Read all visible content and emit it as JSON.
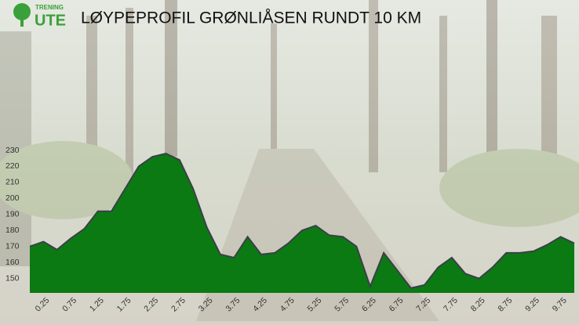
{
  "logo": {
    "top": "TRENING",
    "bottom": "UTE"
  },
  "chart_data": {
    "type": "area",
    "title": "LØYPEPROFIL GRØNLIÅSEN RUNDT 10 KM",
    "x": [
      0,
      0.25,
      0.5,
      0.75,
      1,
      1.25,
      1.5,
      1.75,
      2,
      2.25,
      2.5,
      2.75,
      3,
      3.25,
      3.5,
      3.75,
      4,
      4.25,
      4.5,
      4.75,
      5,
      5.25,
      5.5,
      5.75,
      6,
      6.25,
      6.5,
      6.75,
      7,
      7.25,
      7.5,
      7.75,
      8,
      8.25,
      8.5,
      8.75,
      9,
      9.25,
      9.5,
      9.75,
      10
    ],
    "values": [
      170,
      173,
      168,
      175,
      181,
      192,
      192,
      206,
      220,
      226,
      228,
      224,
      206,
      182,
      165,
      163,
      176,
      165,
      166,
      172,
      180,
      183,
      177,
      176,
      170,
      145,
      166,
      155,
      144,
      146,
      157,
      163,
      153,
      150,
      157,
      166,
      166,
      167,
      171,
      176,
      172
    ],
    "color": "#0b7a12",
    "xlim": [
      0,
      10
    ],
    "xticks": [
      0.25,
      0.75,
      1.25,
      1.75,
      2.25,
      2.75,
      3.25,
      3.75,
      4.25,
      4.75,
      5.25,
      5.75,
      6.25,
      6.75,
      7.25,
      7.75,
      8.25,
      8.75,
      9.25,
      9.75
    ],
    "ylim": [
      141,
      230
    ],
    "yticks": [
      150,
      160,
      170,
      180,
      190,
      200,
      210,
      220,
      230
    ],
    "grid": false
  }
}
